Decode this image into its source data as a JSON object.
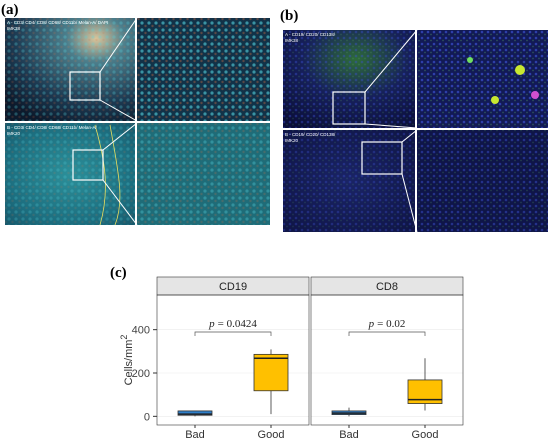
{
  "panels": {
    "a": {
      "label": "(a)",
      "top_stain": "A - CD3/ CD4/ CD8/ CD68/ CD11b/ Melan-A/ DAPI",
      "top_case": "IMK38",
      "bottom_stain": "B - CD3/ CD4/ CD8/ CD68/ CD11b/ Melan-A/",
      "bottom_case": "IMK20"
    },
    "b": {
      "label": "(b)",
      "top_stain": "A - CD19/ CD20/ CD138/",
      "top_case": "IMK38",
      "bottom_stain": "B - CD19/ CD20/ CD138/",
      "bottom_case": "IMK20"
    },
    "c": {
      "label": "(c)"
    }
  },
  "chart_data": {
    "type": "box",
    "y_label": "Cells/mm",
    "y_label_sup": "2",
    "ylim": [
      -40,
      560
    ],
    "yticks": [
      0,
      200,
      400
    ],
    "categories": [
      "Bad",
      "Good"
    ],
    "colors": [
      "#2f7fc9",
      "#ffc000"
    ],
    "facets": [
      {
        "name": "CD19",
        "p_symbol": "p",
        "p_text": "= 0.0424",
        "boxes": [
          {
            "min": 0,
            "q1": 5,
            "median": 10,
            "q3": 25,
            "max": 25
          },
          {
            "min": 10,
            "q1": 118,
            "median": 268,
            "q3": 286,
            "max": 309
          }
        ]
      },
      {
        "name": "CD8",
        "p_symbol": "p",
        "p_text": "= 0.02",
        "boxes": [
          {
            "min": 0,
            "q1": 8,
            "median": 15,
            "q3": 25,
            "max": 40
          },
          {
            "min": 27,
            "q1": 59,
            "median": 77,
            "q3": 168,
            "max": 268
          }
        ]
      }
    ]
  }
}
